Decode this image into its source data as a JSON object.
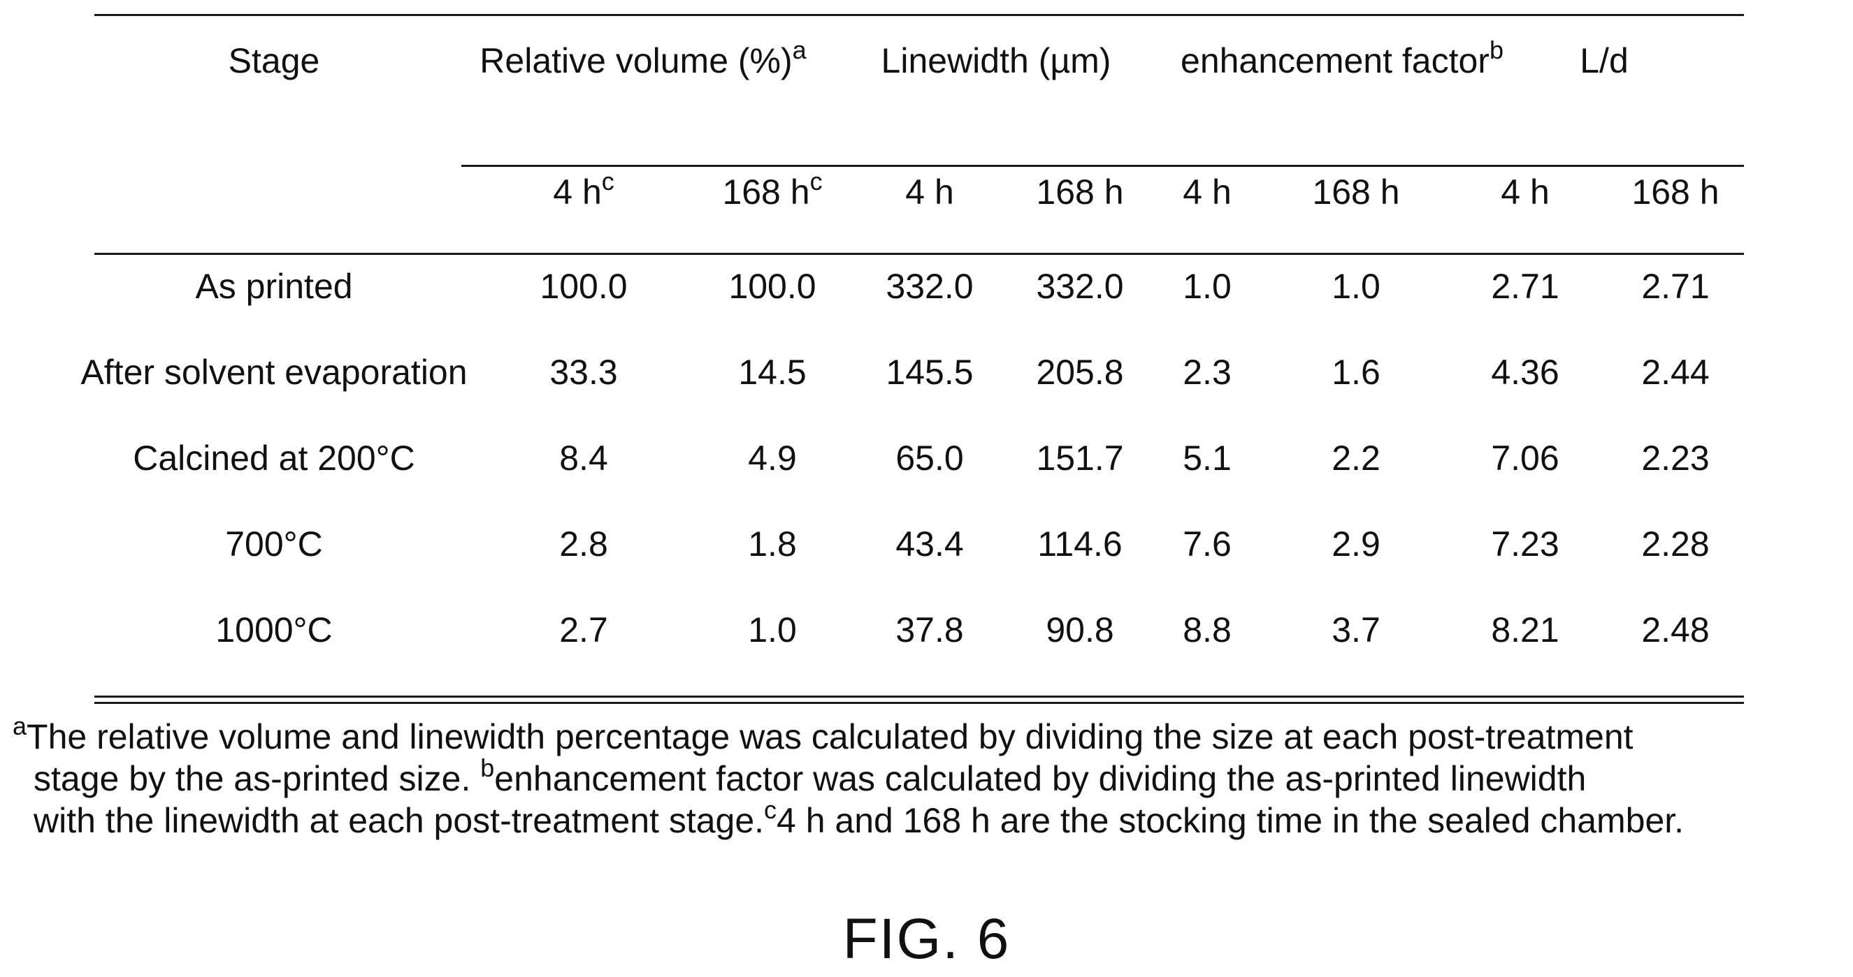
{
  "table": {
    "header": {
      "stage": "Stage",
      "relative_volume": "Relative volume (%)",
      "relative_volume_note": "a",
      "linewidth": "Linewidth (µm)",
      "enhancement_factor": "enhancement factor",
      "enhancement_factor_note": "b",
      "ld": "L/d"
    },
    "subheader": {
      "h4": "4 h",
      "h168": "168 h",
      "time_note": "c"
    },
    "rows": [
      {
        "stage": "As printed",
        "values": [
          "100.0",
          "100.0",
          "332.0",
          "332.0",
          "1.0",
          "1.0",
          "2.71",
          "2.71"
        ]
      },
      {
        "stage": "After solvent evaporation",
        "values": [
          "33.3",
          "14.5",
          "145.5",
          "205.8",
          "2.3",
          "1.6",
          "4.36",
          "2.44"
        ]
      },
      {
        "stage": "Calcined at 200°C",
        "values": [
          "8.4",
          "4.9",
          "65.0",
          "151.7",
          "5.1",
          "2.2",
          "7.06",
          "2.23"
        ]
      },
      {
        "stage": "700°C",
        "values": [
          "2.8",
          "1.8",
          "43.4",
          "114.6",
          "7.6",
          "2.9",
          "7.23",
          "2.28"
        ]
      },
      {
        "stage": "1000°C",
        "values": [
          "2.7",
          "1.0",
          "37.8",
          "90.8",
          "8.8",
          "3.7",
          "8.21",
          "2.48"
        ]
      }
    ]
  },
  "footnotes": {
    "a_mark": "a",
    "a_line1": "The relative volume and linewidth percentage was calculated by dividing the size at each post-treatment",
    "a_line2": "stage by the as-printed size.",
    "b_mark": "b",
    "b_text": "enhancement factor was calculated by dividing the as-printed linewidth",
    "b_line3": "with the linewidth at each post-treatment stage.",
    "c_mark": "c",
    "c_text": "4 h and 168 h are the stocking time in the sealed chamber."
  },
  "figure_label": "FIG. 6"
}
